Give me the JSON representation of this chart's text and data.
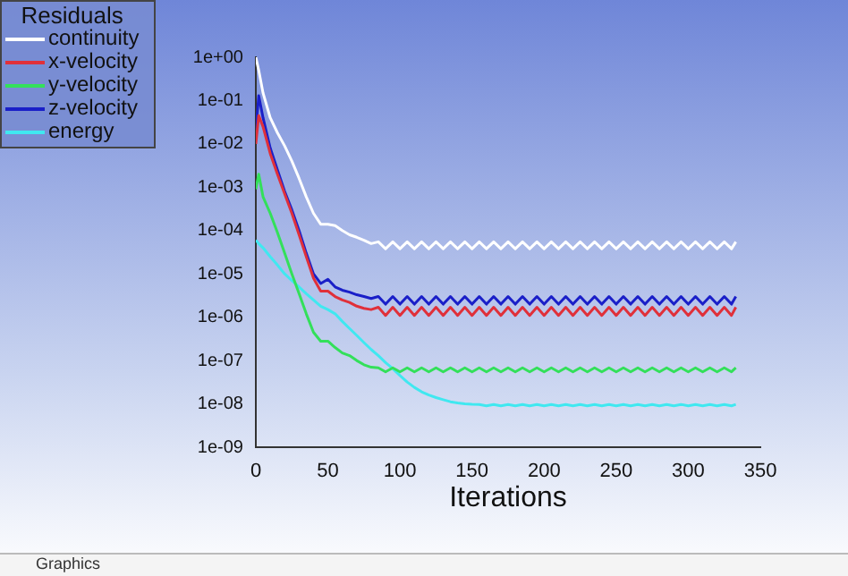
{
  "chart_data": {
    "type": "line",
    "xlabel": "Iterations",
    "legend_title": "Residuals",
    "legend": "top left",
    "grid": false,
    "marker": "none",
    "line_style": "solid",
    "log": "y",
    "xlim": [
      0,
      350
    ],
    "xticks": [
      0,
      50,
      100,
      150,
      200,
      250,
      300,
      350
    ],
    "ylim": [
      1e-09,
      1
    ],
    "yticks": [
      {
        "value": 1e-09,
        "label": "1e-09"
      },
      {
        "value": 1e-08,
        "label": "1e-08"
      },
      {
        "value": 1e-07,
        "label": "1e-07"
      },
      {
        "value": 1e-06,
        "label": "1e-06"
      },
      {
        "value": 1e-05,
        "label": "1e-05"
      },
      {
        "value": 0.0001,
        "label": "1e-04"
      },
      {
        "value": 0.001,
        "label": "1e-03"
      },
      {
        "value": 0.01,
        "label": "1e-02"
      },
      {
        "value": 0.1,
        "label": "1e-01"
      },
      {
        "value": 1,
        "label": "1e+00"
      }
    ],
    "annotations": [
      "Graphics"
    ],
    "x": [
      0,
      2,
      5,
      10,
      15,
      20,
      25,
      30,
      35,
      40,
      45,
      50,
      55,
      60,
      65,
      70,
      75,
      80,
      85,
      90,
      95,
      100,
      105,
      110,
      115,
      120,
      125,
      130,
      135,
      140,
      145,
      150,
      155,
      160,
      165,
      170,
      175,
      180,
      185,
      190,
      195,
      200,
      205,
      210,
      215,
      220,
      225,
      230,
      235,
      240,
      245,
      250,
      255,
      260,
      265,
      270,
      275,
      280,
      285,
      290,
      295,
      300,
      305,
      310,
      315,
      320,
      325,
      330,
      333
    ],
    "series": [
      {
        "name": "continuity",
        "color": "#ffffff",
        "values": [
          1,
          0.5,
          0.15,
          0.04,
          0.018,
          0.009,
          0.004,
          0.0016,
          0.0006,
          0.00025,
          0.00014,
          0.00014,
          0.00013,
          0.0001,
          8e-05,
          7e-05,
          6e-05,
          5e-05,
          5.5e-05,
          3.8e-05,
          5.5e-05,
          3.8e-05,
          5.5e-05,
          3.8e-05,
          5.5e-05,
          3.8e-05,
          5.5e-05,
          3.8e-05,
          5.5e-05,
          3.8e-05,
          5.5e-05,
          3.8e-05,
          5.5e-05,
          3.8e-05,
          5.5e-05,
          3.8e-05,
          5.5e-05,
          3.8e-05,
          5.5e-05,
          3.8e-05,
          5.5e-05,
          3.8e-05,
          5.5e-05,
          3.8e-05,
          5.5e-05,
          3.8e-05,
          5.5e-05,
          3.8e-05,
          5.5e-05,
          3.8e-05,
          5.5e-05,
          3.8e-05,
          5.5e-05,
          3.8e-05,
          5.5e-05,
          3.8e-05,
          5.5e-05,
          3.8e-05,
          5.5e-05,
          3.8e-05,
          5.5e-05,
          3.8e-05,
          5.5e-05,
          3.8e-05,
          5.5e-05,
          3.8e-05,
          5.5e-05,
          3.8e-05,
          5.5e-05
        ]
      },
      {
        "name": "x-velocity",
        "color": "#e0303a",
        "values": [
          0.01,
          0.045,
          0.025,
          0.006,
          0.002,
          0.0007,
          0.00025,
          8e-05,
          2.5e-05,
          8e-06,
          4e-06,
          4e-06,
          3e-06,
          2.5e-06,
          2.2e-06,
          1.8e-06,
          1.6e-06,
          1.5e-06,
          1.7e-06,
          1.1e-06,
          1.7e-06,
          1.1e-06,
          1.7e-06,
          1.1e-06,
          1.7e-06,
          1.1e-06,
          1.7e-06,
          1.1e-06,
          1.7e-06,
          1.1e-06,
          1.7e-06,
          1.1e-06,
          1.7e-06,
          1.1e-06,
          1.7e-06,
          1.1e-06,
          1.7e-06,
          1.1e-06,
          1.7e-06,
          1.1e-06,
          1.7e-06,
          1.1e-06,
          1.7e-06,
          1.1e-06,
          1.7e-06,
          1.1e-06,
          1.7e-06,
          1.1e-06,
          1.7e-06,
          1.1e-06,
          1.7e-06,
          1.1e-06,
          1.7e-06,
          1.1e-06,
          1.7e-06,
          1.1e-06,
          1.7e-06,
          1.1e-06,
          1.7e-06,
          1.1e-06,
          1.7e-06,
          1.1e-06,
          1.7e-06,
          1.1e-06,
          1.7e-06,
          1.1e-06,
          1.7e-06,
          1.1e-06,
          1.7e-06
        ]
      },
      {
        "name": "y-velocity",
        "color": "#33e05a",
        "values": [
          0.0009,
          0.002,
          0.0006,
          0.00025,
          9e-05,
          3e-05,
          1e-05,
          3.5e-06,
          1.2e-06,
          4.5e-07,
          2.8e-07,
          2.8e-07,
          2e-07,
          1.5e-07,
          1.3e-07,
          1e-07,
          8e-08,
          7e-08,
          6.8e-08,
          5.5e-08,
          6.8e-08,
          5.5e-08,
          6.8e-08,
          5.5e-08,
          6.8e-08,
          5.5e-08,
          6.8e-08,
          5.5e-08,
          6.8e-08,
          5.5e-08,
          6.8e-08,
          5.5e-08,
          6.8e-08,
          5.5e-08,
          6.8e-08,
          5.5e-08,
          6.8e-08,
          5.5e-08,
          6.8e-08,
          5.5e-08,
          6.8e-08,
          5.5e-08,
          6.8e-08,
          5.5e-08,
          6.8e-08,
          5.5e-08,
          6.8e-08,
          5.5e-08,
          6.8e-08,
          5.5e-08,
          6.8e-08,
          5.5e-08,
          6.8e-08,
          5.5e-08,
          6.8e-08,
          5.5e-08,
          6.8e-08,
          5.5e-08,
          6.8e-08,
          5.5e-08,
          6.8e-08,
          5.5e-08,
          6.8e-08,
          5.5e-08,
          6.8e-08,
          5.5e-08,
          6.8e-08,
          5.5e-08,
          6.8e-08
        ]
      },
      {
        "name": "z-velocity",
        "color": "#1a1fc8",
        "values": [
          0.02,
          0.13,
          0.04,
          0.008,
          0.0025,
          0.0008,
          0.0003,
          0.0001,
          3e-05,
          1e-05,
          6e-06,
          7.5e-06,
          5e-06,
          4.2e-06,
          3.8e-06,
          3.3e-06,
          3e-06,
          2.7e-06,
          3e-06,
          2e-06,
          3e-06,
          2e-06,
          3e-06,
          2e-06,
          3e-06,
          2e-06,
          3e-06,
          2e-06,
          3e-06,
          2e-06,
          3e-06,
          2e-06,
          3e-06,
          2e-06,
          3e-06,
          2e-06,
          3e-06,
          2e-06,
          3e-06,
          2e-06,
          3e-06,
          2e-06,
          3e-06,
          2e-06,
          3e-06,
          2e-06,
          3e-06,
          2e-06,
          3e-06,
          2e-06,
          3e-06,
          2e-06,
          3e-06,
          2e-06,
          3e-06,
          2e-06,
          3e-06,
          2e-06,
          3e-06,
          2e-06,
          3e-06,
          2e-06,
          3e-06,
          2e-06,
          3e-06,
          2e-06,
          3e-06,
          2e-06,
          3e-06
        ]
      },
      {
        "name": "energy",
        "color": "#40e8f0",
        "values": [
          6e-05,
          5e-05,
          4e-05,
          2.5e-05,
          1.6e-05,
          1e-05,
          7e-06,
          5e-06,
          3.5e-06,
          2.5e-06,
          1.8e-06,
          1.5e-06,
          1.2e-06,
          8e-07,
          5.5e-07,
          3.8e-07,
          2.6e-07,
          1.8e-07,
          1.3e-07,
          9e-08,
          6.5e-08,
          4.5e-08,
          3.2e-08,
          2.4e-08,
          1.9e-08,
          1.6e-08,
          1.4e-08,
          1.25e-08,
          1.12e-08,
          1.05e-08,
          1e-08,
          9.8e-09,
          9.7e-09,
          9e-09,
          9.7e-09,
          9e-09,
          9.7e-09,
          9e-09,
          9.7e-09,
          9e-09,
          9.7e-09,
          9e-09,
          9.7e-09,
          9e-09,
          9.7e-09,
          9e-09,
          9.7e-09,
          9e-09,
          9.7e-09,
          9e-09,
          9.7e-09,
          9e-09,
          9.7e-09,
          9e-09,
          9.7e-09,
          9e-09,
          9.7e-09,
          9e-09,
          9.7e-09,
          9e-09,
          9.7e-09,
          9e-09,
          9.7e-09,
          9e-09,
          9.7e-09,
          9e-09,
          9.7e-09,
          9e-09,
          9.7e-09
        ]
      }
    ]
  }
}
